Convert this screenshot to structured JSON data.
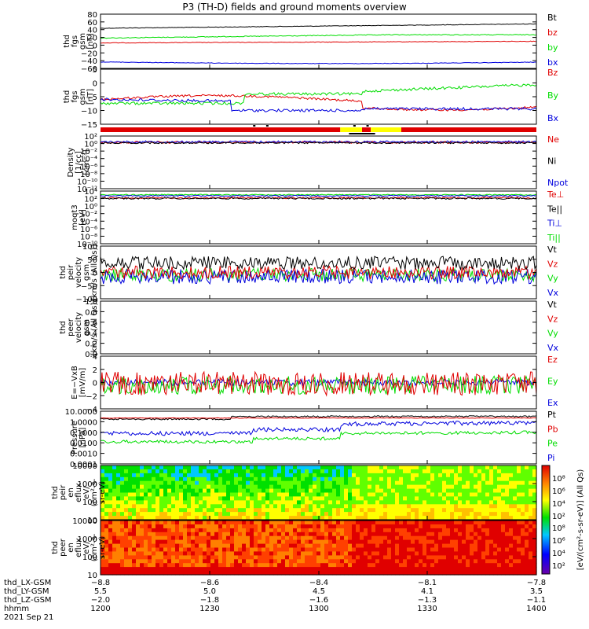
{
  "title": "P3 (TH-D) fields and ground moments overview",
  "colors": {
    "black": "#000000",
    "red": "#e00000",
    "green": "#00dd00",
    "blue": "#0000dd",
    "yellow": "#ffff00",
    "darkred": "#aa0000"
  },
  "chart_data": [
    {
      "id": "fgs",
      "type": "line",
      "ylabel": [
        "thd",
        "fgs",
        "gsm",
        "[nT]"
      ],
      "yticks": [
        "80",
        "60",
        "40",
        "20",
        "0",
        "−20",
        "−40",
        "−60"
      ],
      "legend": [
        {
          "name": "Bt",
          "color": "black"
        },
        {
          "name": "bz",
          "color": "red"
        },
        {
          "name": "by",
          "color": "green"
        },
        {
          "name": "bx",
          "color": "blue"
        }
      ]
    },
    {
      "id": "fgs_dsl",
      "type": "line",
      "ylabel": [
        "thd",
        "fgs",
        "gsm",
        "[nT]"
      ],
      "yticks": [
        "5",
        "0",
        "−5",
        "−10",
        "−15"
      ],
      "legend": [
        {
          "name": "Bz",
          "color": "red"
        },
        {
          "name": "By",
          "color": "green"
        },
        {
          "name": "Bx",
          "color": "blue"
        }
      ]
    },
    {
      "id": "density",
      "type": "line",
      "ylabel": [
        "Density",
        "[1/cc]",
        "[cm⁻³]"
      ],
      "yticks": [
        "10²",
        "10⁰",
        "10⁻²",
        "10⁻⁴",
        "10⁻⁶",
        "10⁻⁸",
        "10⁻¹⁰",
        "10⁻¹²"
      ],
      "legend": [
        {
          "name": "Ne",
          "color": "red"
        },
        {
          "name": "Ni",
          "color": "black"
        },
        {
          "name": "Npot",
          "color": "blue"
        }
      ]
    },
    {
      "id": "temp",
      "type": "line",
      "ylabel": [
        "moqt3",
        "[eV]"
      ],
      "yticks": [
        "10⁴",
        "10²",
        "10⁰",
        "10⁻²",
        "10⁻⁴",
        "10⁻⁶",
        "10⁻⁸",
        "10⁻¹⁰"
      ],
      "legend": [
        {
          "name": "Te⊥",
          "color": "red"
        },
        {
          "name": "Te||",
          "color": "black"
        },
        {
          "name": "Ti⊥",
          "color": "blue"
        },
        {
          "name": "Ti||",
          "color": "green"
        }
      ]
    },
    {
      "id": "peir_vel",
      "type": "line",
      "ylabel": [
        "thd",
        "peir",
        "velocity",
        "gsm",
        "[km/s (All Qs)]"
      ],
      "yticks": [
        "100",
        "50",
        "0",
        "−50",
        "−100"
      ],
      "legend": [
        {
          "name": "Vt",
          "color": "black"
        },
        {
          "name": "Vz",
          "color": "red"
        },
        {
          "name": "Vy",
          "color": "green"
        },
        {
          "name": "Vx",
          "color": "blue"
        }
      ]
    },
    {
      "id": "peer_vel",
      "type": "line",
      "ylabel": [
        "thd",
        "peer",
        "velocity",
        "gsm",
        "[km/s (All Qs)]"
      ],
      "yticks": [
        "1.0",
        "0.8",
        "0.6",
        "0.4",
        "0.2",
        "0.0"
      ],
      "legend": [
        {
          "name": "Vt",
          "color": "black"
        },
        {
          "name": "Vz",
          "color": "red"
        },
        {
          "name": "Vy",
          "color": "green"
        },
        {
          "name": "Vx",
          "color": "blue"
        }
      ]
    },
    {
      "id": "efield",
      "type": "line",
      "ylabel": [
        "E=−VxB",
        "[mV/m]"
      ],
      "yticks": [
        "4",
        "2",
        "0",
        "−2",
        "−4"
      ],
      "legend": [
        {
          "name": "Ez",
          "color": "red"
        },
        {
          "name": "Ey",
          "color": "green"
        },
        {
          "name": "Ex",
          "color": "blue"
        }
      ]
    },
    {
      "id": "pressure",
      "type": "line",
      "ylabel": [
        "Pressure",
        "[nPa]"
      ],
      "yticks": [
        "10.0000",
        "1.0000",
        "0.1000",
        "0.0100",
        "0.0010",
        "0.0001"
      ],
      "legend": [
        {
          "name": "Pt",
          "color": "black"
        },
        {
          "name": "Pb",
          "color": "red"
        },
        {
          "name": "Pe",
          "color": "green"
        },
        {
          "name": "Pi",
          "color": "blue"
        }
      ]
    },
    {
      "id": "peir_en",
      "type": "heatmap",
      "ylabel": [
        "thd",
        "peir",
        "en",
        "eflux",
        "eV/",
        "(cm²-s-",
        "sr-eV)"
      ],
      "yticks": [
        "10000",
        "1000",
        "100",
        "10"
      ]
    },
    {
      "id": "peer_en",
      "type": "heatmap",
      "ylabel": [
        "thd",
        "peer",
        "en",
        "eflux",
        "eV/",
        "(cm²-s-",
        "sr-eV)"
      ],
      "yticks": [
        "10000",
        "1000",
        "100",
        "10"
      ]
    }
  ],
  "colorbar": {
    "upper_ticks": [
      "10⁸",
      "10⁶",
      "10⁴",
      "10²"
    ],
    "lower_ticks": [
      "10⁸",
      "10⁶",
      "10⁴",
      "10²"
    ],
    "label": "[eV/(cm²-s-sr-eV)] (All Qs)"
  },
  "xaxis": {
    "row_labels": [
      "thd_LX-GSM",
      "thd_LY-GSM",
      "thd_LZ-GSM",
      "hhmm",
      "2021 Sep 21"
    ],
    "columns": [
      {
        "lx": "−8.8",
        "ly": "5.5",
        "lz": "−2.0",
        "hhmm": "1200"
      },
      {
        "lx": "−8.6",
        "ly": "5.0",
        "lz": "−1.8",
        "hhmm": "1230"
      },
      {
        "lx": "−8.4",
        "ly": "4.5",
        "lz": "−1.6",
        "hhmm": "1300"
      },
      {
        "lx": "−8.1",
        "ly": "4.1",
        "lz": "−1.3",
        "hhmm": "1330"
      },
      {
        "lx": "−7.8",
        "ly": "3.5",
        "lz": "−1.1",
        "hhmm": "1400"
      }
    ]
  }
}
